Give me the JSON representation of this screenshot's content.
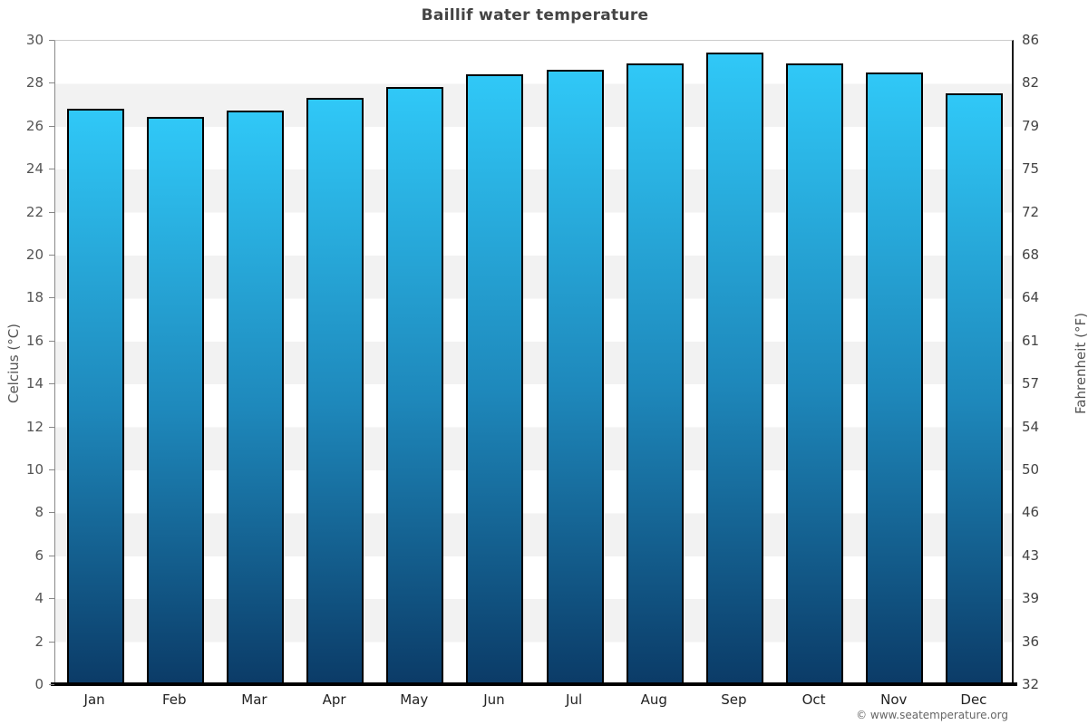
{
  "title": "Baillif water temperature",
  "copyright": "© www.seatemperature.org",
  "axes": {
    "left_title": "Celcius (°C)",
    "right_title": "Fahrenheit (°F)"
  },
  "chart_data": {
    "type": "bar",
    "title": "Baillif water temperature",
    "categories": [
      "Jan",
      "Feb",
      "Mar",
      "Apr",
      "May",
      "Jun",
      "Jul",
      "Aug",
      "Sep",
      "Oct",
      "Nov",
      "Dec"
    ],
    "values": [
      26.8,
      26.4,
      26.7,
      27.3,
      27.8,
      28.4,
      28.6,
      28.9,
      29.4,
      28.9,
      28.5,
      27.5
    ],
    "unit": "°C",
    "xlabel": "",
    "ylabel_left": "Celcius (°C)",
    "ylabel_right": "Fahrenheit (°F)",
    "ylim_celsius": [
      0,
      30
    ],
    "yticks_celsius": [
      30,
      28,
      26,
      24,
      22,
      20,
      18,
      16,
      14,
      12,
      10,
      8,
      6,
      4,
      2,
      0
    ],
    "yticks_fahrenheit": [
      86,
      82,
      79,
      75,
      72,
      68,
      64,
      61,
      57,
      54,
      50,
      46,
      43,
      39,
      36,
      32
    ],
    "grid": "alternating 2-degree horizontal bands, white and #f2f2f2, starting white below 30",
    "legend": "none",
    "colors": {
      "bar_gradient_top": "#30c8f7",
      "bar_gradient_mid": "#1e88bb",
      "bar_gradient_bottom": "#0b3b67",
      "bar_border": "#000000",
      "band_gray": "#f2f2f2",
      "title_text": "#444444",
      "tick_text": "#555555",
      "bottom_axis": "#000000"
    }
  }
}
